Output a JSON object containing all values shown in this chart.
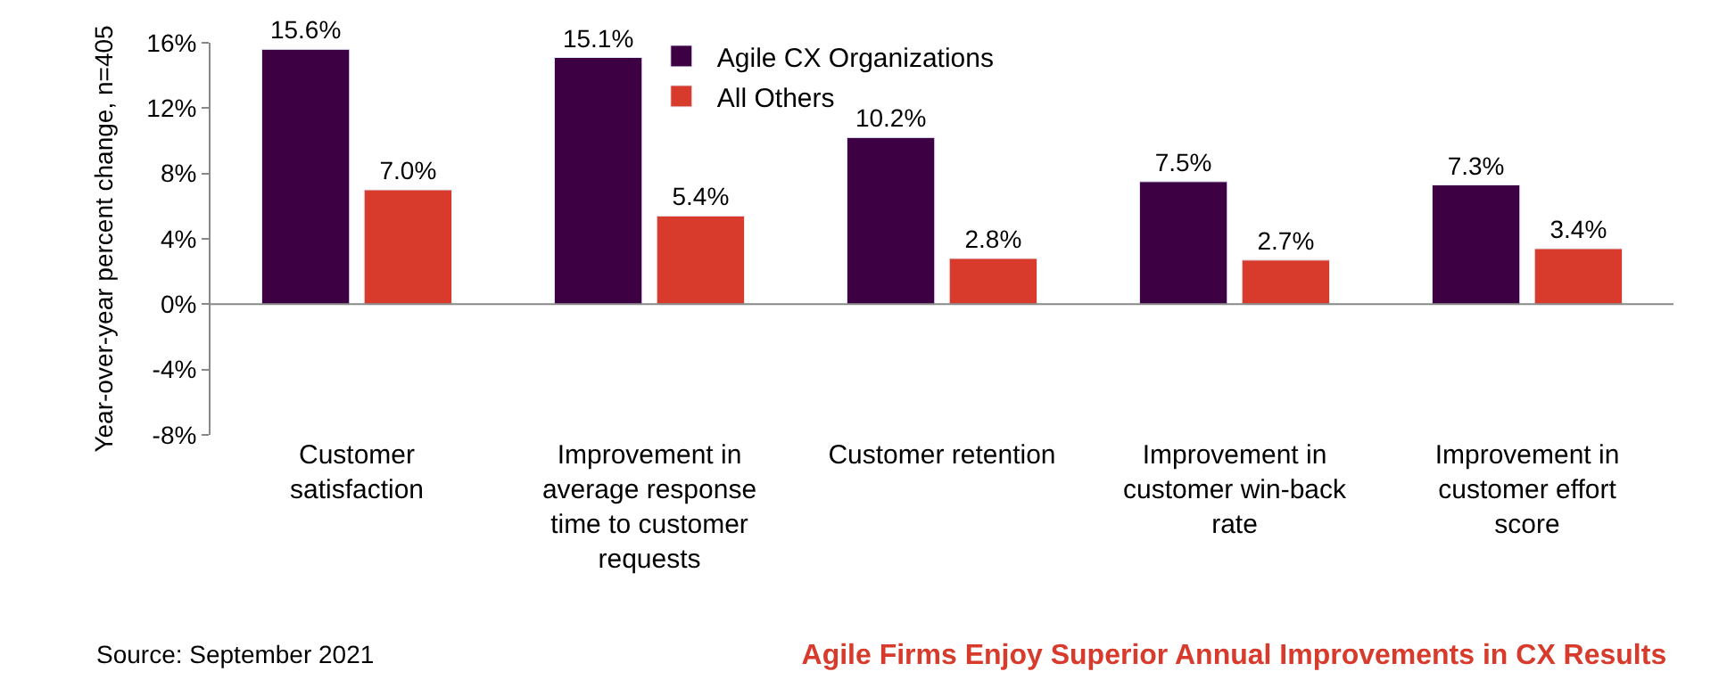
{
  "chart_data": {
    "type": "bar",
    "title": "Agile Firms Enjoy Superior Annual Improvements in CX Results",
    "ylabel": "Year-over-year percent change, n=405",
    "categories": [
      "Customer satisfaction",
      "Improvement in average response time to customer requests",
      "Customer retention",
      "Improvement in customer win-back rate",
      "Improvement in customer effort score"
    ],
    "series": [
      {
        "name": "Agile CX Organizations",
        "color": "#3d0042",
        "values": [
          15.6,
          15.1,
          10.2,
          7.5,
          7.3
        ],
        "value_labels": [
          "15.6%",
          "15.1%",
          "10.2%",
          "7.5%",
          "7.3%"
        ]
      },
      {
        "name": "All Others",
        "color": "#d83a2c",
        "values": [
          7.0,
          5.4,
          2.8,
          2.7,
          3.4
        ],
        "value_labels": [
          "7.0%",
          "5.4%",
          "2.8%",
          "2.7%",
          "3.4%"
        ]
      }
    ],
    "ylim": [
      -8,
      16
    ],
    "yticks": [
      {
        "value": -8,
        "label": "-8%"
      },
      {
        "value": -4,
        "label": "-4%"
      },
      {
        "value": 0,
        "label": "0%"
      },
      {
        "value": 4,
        "label": "4%"
      },
      {
        "value": 8,
        "label": "8%"
      },
      {
        "value": 12,
        "label": "12%"
      },
      {
        "value": 16,
        "label": "16%"
      }
    ],
    "legend": "top",
    "ref_lines": [
      {
        "axis": "y",
        "value": 0,
        "color": "#888888"
      }
    ],
    "annotations": [
      "Source: September 2021"
    ]
  }
}
